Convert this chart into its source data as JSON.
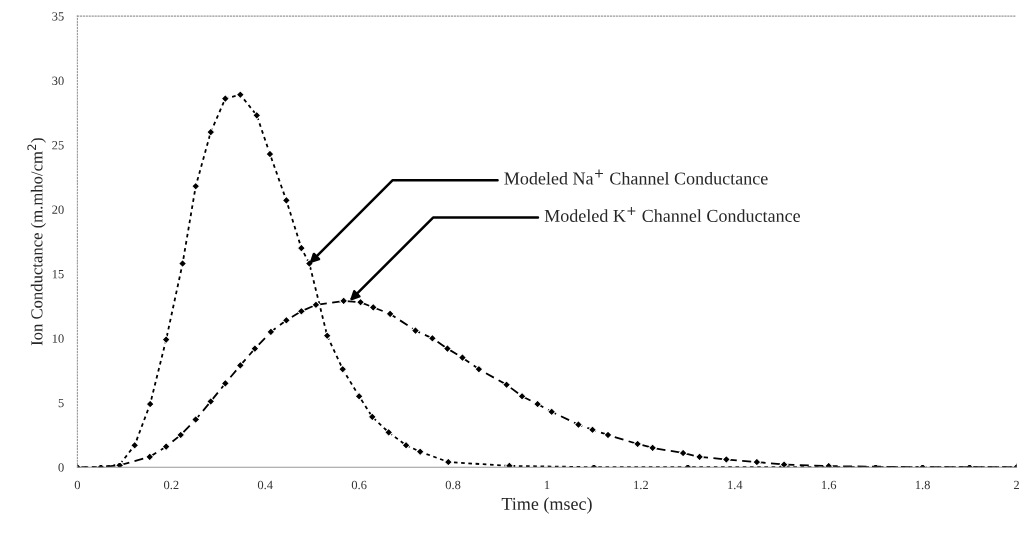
{
  "chart_data": {
    "type": "line",
    "xlabel": "Time (msec)",
    "ylabel": "Ion Conductance (m.mho/cm$^{2}$)",
    "xlim": [
      0,
      2
    ],
    "xticks": [
      0,
      0.2,
      0.4,
      0.6,
      0.8,
      1,
      1.2,
      1.4,
      1.6,
      1.8,
      2
    ],
    "ylim": [
      0,
      35
    ],
    "yticks": [
      0,
      5,
      10,
      15,
      20,
      25,
      30,
      35
    ],
    "grid": false,
    "marker": "diamond",
    "legend": false,
    "series": [
      {
        "color": "#000000",
        "line_style": "dotted",
        "x": [
          0,
          0.05,
          0.09,
          0.122,
          0.155,
          0.189,
          0.224,
          0.252,
          0.284,
          0.315,
          0.347,
          0.382,
          0.41,
          0.445,
          0.477,
          0.494,
          0.532,
          0.565,
          0.6,
          0.628,
          0.663,
          0.7,
          0.73,
          0.79,
          0.92,
          1.1,
          1.3,
          1.5,
          1.7,
          1.9,
          2.0
        ],
        "values": [
          0,
          0,
          0.2,
          1.7,
          4.9,
          9.9,
          15.8,
          21.8,
          26.0,
          28.6,
          28.9,
          27.3,
          24.3,
          20.7,
          17.0,
          15.8,
          10.2,
          7.6,
          5.5,
          3.9,
          2.7,
          1.7,
          1.2,
          0.4,
          0.1,
          0,
          0,
          0,
          0,
          0,
          0
        ]
      },
      {
        "color": "#000000",
        "line_style": "dashed",
        "x": [
          0,
          0.05,
          0.09,
          0.154,
          0.189,
          0.22,
          0.252,
          0.284,
          0.315,
          0.347,
          0.378,
          0.412,
          0.445,
          0.477,
          0.508,
          0.567,
          0.603,
          0.63,
          0.666,
          0.72,
          0.756,
          0.788,
          0.82,
          0.855,
          0.914,
          0.947,
          0.98,
          1.01,
          1.067,
          1.097,
          1.13,
          1.193,
          1.225,
          1.29,
          1.325,
          1.382,
          1.447,
          1.505,
          1.6,
          1.8,
          2.0
        ],
        "values": [
          0,
          0,
          0.15,
          0.8,
          1.6,
          2.5,
          3.7,
          5.1,
          6.5,
          7.9,
          9.2,
          10.5,
          11.4,
          12.1,
          12.6,
          12.9,
          12.8,
          12.4,
          11.9,
          10.6,
          10.0,
          9.2,
          8.5,
          7.6,
          6.4,
          5.5,
          4.9,
          4.3,
          3.3,
          2.9,
          2.5,
          1.8,
          1.5,
          1.1,
          0.8,
          0.6,
          0.4,
          0.2,
          0.08,
          0,
          0
        ]
      }
    ],
    "annotations": [
      {
        "text": "Modeled Na$^{+}$ Channel Conductance",
        "x": 0.494,
        "y": 15.8
      },
      {
        "text": "Modeled K$^{+}$ Channel Conductance",
        "x": 0.58,
        "y": 12.9
      }
    ]
  }
}
